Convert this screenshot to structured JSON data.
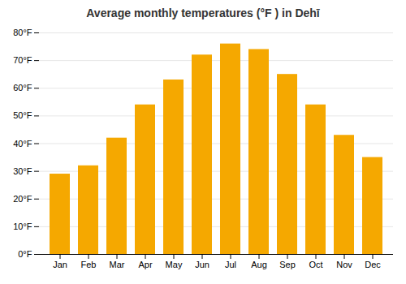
{
  "chart_data": {
    "type": "bar",
    "title": "Average monthly temperatures (°F ) in Dehī",
    "categories": [
      "Jan",
      "Feb",
      "Mar",
      "Apr",
      "May",
      "Jun",
      "Jul",
      "Aug",
      "Sep",
      "Oct",
      "Nov",
      "Dec"
    ],
    "values": [
      29,
      32,
      42,
      54,
      63,
      72,
      76,
      74,
      65,
      54,
      43,
      35
    ],
    "color": "#F5A800",
    "ylim": [
      0,
      80
    ],
    "yticks": [
      {
        "value": 0,
        "label": "0°F"
      },
      {
        "value": 10,
        "label": "10°F"
      },
      {
        "value": 20,
        "label": "20°F"
      },
      {
        "value": 30,
        "label": "30°F"
      },
      {
        "value": 40,
        "label": "40°F"
      },
      {
        "value": 50,
        "label": "50°F"
      },
      {
        "value": 60,
        "label": "60°F"
      },
      {
        "value": 70,
        "label": "70°F"
      },
      {
        "value": 80,
        "label": "80°F"
      }
    ],
    "grid": true
  }
}
